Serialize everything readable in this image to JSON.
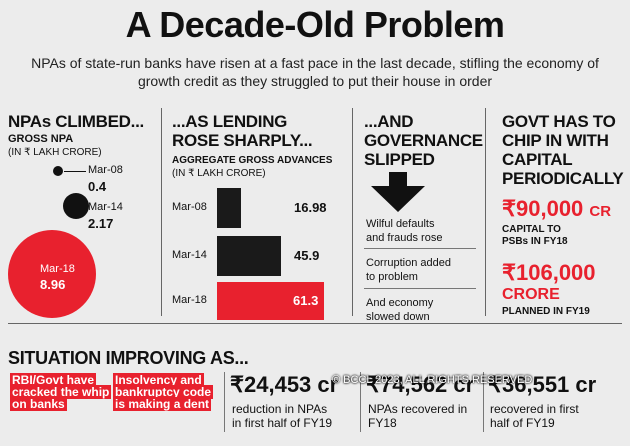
{
  "header": {
    "title": "A Decade-Old Problem",
    "subtitle": "NPAs of state-run banks have risen at a fast pace in the last decade, stifling the economy of growth credit as they struggled to put their house in order"
  },
  "npa": {
    "heading": "NPAs CLIMBED...",
    "label": "GROSS NPA",
    "unit": "(IN ₹ LAKH CRORE)",
    "points": [
      {
        "year": "Mar-08",
        "value": "0.4"
      },
      {
        "year": "Mar-14",
        "value": "2.17"
      },
      {
        "year": "Mar-18",
        "value": "8.96"
      }
    ]
  },
  "lending": {
    "heading_1": "...AS LENDING",
    "heading_2": "ROSE SHARPLY...",
    "label": "AGGREGATE GROSS ADVANCES",
    "unit": "(IN ₹ LAKH CRORE)",
    "bars": [
      {
        "year": "Mar-08",
        "value": 16.98,
        "value_label": "16.98"
      },
      {
        "year": "Mar-14",
        "value": 45.9,
        "value_label": "45.9"
      },
      {
        "year": "Mar-18",
        "value": 61.3,
        "value_label": "61.3"
      }
    ]
  },
  "governance": {
    "heading_1": "...AND",
    "heading_2": "GOVERNANCE",
    "heading_3": "SLIPPED",
    "item1_l1": "Wilful defaults",
    "item1_l2": "and frauds rose",
    "item2_l1": "Corruption added",
    "item2_l2": "to problem",
    "item3_l1": "And economy",
    "item3_l2": "slowed down"
  },
  "capital": {
    "heading_1": "GOVT HAS TO",
    "heading_2": "CHIP IN WITH",
    "heading_3": "CAPITAL",
    "heading_4": "PERIODICALLY",
    "amount1": "₹90,000",
    "amount1_unit": "CR",
    "amount1_label_1": "CAPITAL TO",
    "amount1_label_2": "PSBs IN FY18",
    "amount2": "₹106,000",
    "amount2_line2": "CRORE",
    "amount2_label": "PLANNED IN FY19"
  },
  "situation": {
    "heading": "SITUATION IMPROVING AS...",
    "tag1": "RBI/Govt have cracked the whip on banks",
    "tag2": "Insolvency and bankruptcy code is making a dent",
    "stat1_value": "₹24,453 cr",
    "stat1_l1": "reduction in NPAs",
    "stat1_l2": "in first half of FY19",
    "stat2_value": "₹74,562 cr",
    "stat2_l1": "NPAs recovered in",
    "stat2_l2": "FY18",
    "stat3_value": "₹36,551 cr",
    "stat3_l1": "recovered in first",
    "stat3_l2": "half of FY19",
    "watermark": "© BCCL 2023, ALL RIGHTS RESERVED"
  }
}
